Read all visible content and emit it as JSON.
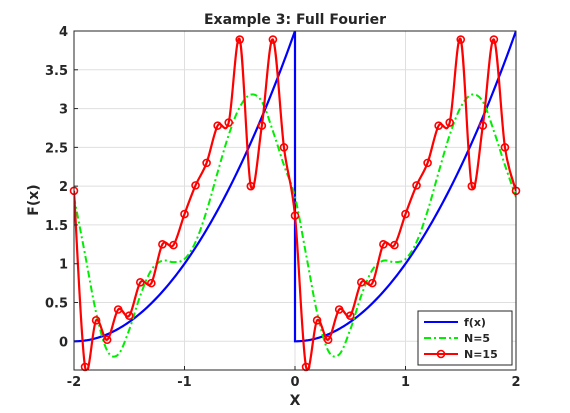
{
  "chart_data": {
    "type": "line",
    "title": "Example 3: Full Fourier",
    "xlabel": "X",
    "ylabel": "F(x)",
    "xlim": [
      -2,
      2
    ],
    "ylim": [
      -0.37,
      4
    ],
    "grid": true,
    "legend_position": "bottom-right",
    "xticks": [
      -2,
      -1,
      0,
      1,
      2
    ],
    "xtick_labels": [
      "-2",
      "-1",
      "0",
      "1",
      "2"
    ],
    "yticks": [
      0,
      0.5,
      1,
      1.5,
      2,
      2.5,
      3,
      3.5,
      4
    ],
    "ytick_labels": [
      "0",
      "0.5",
      "1",
      "1.5",
      "2",
      "2.5",
      "3",
      "3.5",
      "4"
    ],
    "series": [
      {
        "name": "f(x)",
        "color": "#0000ff",
        "style": "solid",
        "function": "x^2 on (0,2], (x+2)^2 on [-2,0], jump at 0",
        "x": [
          -2,
          -1.8,
          -1.6,
          -1.4,
          -1.2,
          -1.0,
          -0.8,
          -0.6,
          -0.4,
          -0.2,
          0,
          0,
          0.2,
          0.4,
          0.6,
          0.8,
          1.0,
          1.2,
          1.4,
          1.6,
          1.8,
          2.0
        ],
        "y": [
          0,
          0.04,
          0.16,
          0.36,
          0.64,
          1.0,
          1.44,
          1.96,
          2.56,
          3.24,
          4.0,
          0,
          0.04,
          0.16,
          0.36,
          0.64,
          1.0,
          1.44,
          1.96,
          2.56,
          3.24,
          4.0
        ]
      },
      {
        "name": "N=5",
        "color": "#00ee00",
        "style": "dash-dot",
        "x": [
          -2,
          -1.9,
          -1.8,
          -1.7,
          -1.6,
          -1.5,
          -1.4,
          -1.3,
          -1.2,
          -1.1,
          -1.0,
          -0.9,
          -0.8,
          -0.7,
          -0.6,
          -0.5,
          -0.4,
          -0.3,
          -0.2,
          -0.1,
          0,
          0.1,
          0.2,
          0.3,
          0.4,
          0.5,
          0.6,
          0.7,
          0.8,
          0.9,
          1.0,
          1.1,
          1.2,
          1.3,
          1.4,
          1.5,
          1.6,
          1.7,
          1.8,
          1.9,
          2.0
        ],
        "y": [
          1.86,
          1.12,
          0.37,
          -0.12,
          -0.17,
          0.15,
          0.59,
          0.92,
          1.04,
          1.02,
          1.06,
          1.28,
          1.68,
          2.18,
          2.66,
          3.02,
          3.18,
          3.09,
          2.71,
          2.27,
          1.86,
          1.12,
          0.37,
          -0.12,
          -0.17,
          0.15,
          0.59,
          0.92,
          1.04,
          1.02,
          1.06,
          1.28,
          1.68,
          2.18,
          2.66,
          3.02,
          3.18,
          3.09,
          2.71,
          2.27,
          1.86
        ]
      },
      {
        "name": "N=15",
        "color": "#ff0000",
        "style": "solid-circle-markers",
        "x": [
          -2,
          -1.9,
          -1.8,
          -1.7,
          -1.6,
          -1.5,
          -1.4,
          -1.3,
          -1.2,
          -1.1,
          -1.0,
          -0.9,
          -0.8,
          -0.7,
          -0.6,
          -0.5,
          -0.4,
          -0.3,
          -0.2,
          -0.1,
          0,
          0.1,
          0.2,
          0.3,
          0.4,
          0.5,
          0.6,
          0.7,
          0.8,
          0.9,
          1.0,
          1.1,
          1.2,
          1.3,
          1.4,
          1.5,
          1.6,
          1.7,
          1.8,
          1.9,
          2.0
        ],
        "y": [
          1.94,
          -0.33,
          0.27,
          0.02,
          0.41,
          0.33,
          0.76,
          0.75,
          1.25,
          1.24,
          1.64,
          2.01,
          2.3,
          2.78,
          2.82,
          3.89,
          2.0,
          2.78,
          3.89,
          2.5,
          1.62,
          -0.33,
          0.27,
          0.02,
          0.41,
          0.33,
          0.76,
          0.75,
          1.25,
          1.24,
          1.64,
          2.01,
          2.3,
          2.78,
          2.82,
          3.89,
          2.0,
          2.78,
          3.89,
          2.5,
          1.94
        ],
        "markers_x": [
          -2,
          -1.9,
          -1.8,
          -1.7,
          -1.6,
          -1.5,
          -1.4,
          -1.3,
          -1.2,
          -1.1,
          -1.0,
          -0.9,
          -0.8,
          -0.7,
          -0.6,
          -0.5,
          -0.4,
          -0.3,
          -0.2,
          -0.1,
          0,
          0.1,
          0.2,
          0.3,
          0.4,
          0.5,
          0.6,
          0.7,
          0.8,
          0.9,
          1.0,
          1.1,
          1.2,
          1.3,
          1.4,
          1.5,
          1.6,
          1.7,
          1.8,
          1.9,
          2.0
        ]
      }
    ]
  }
}
